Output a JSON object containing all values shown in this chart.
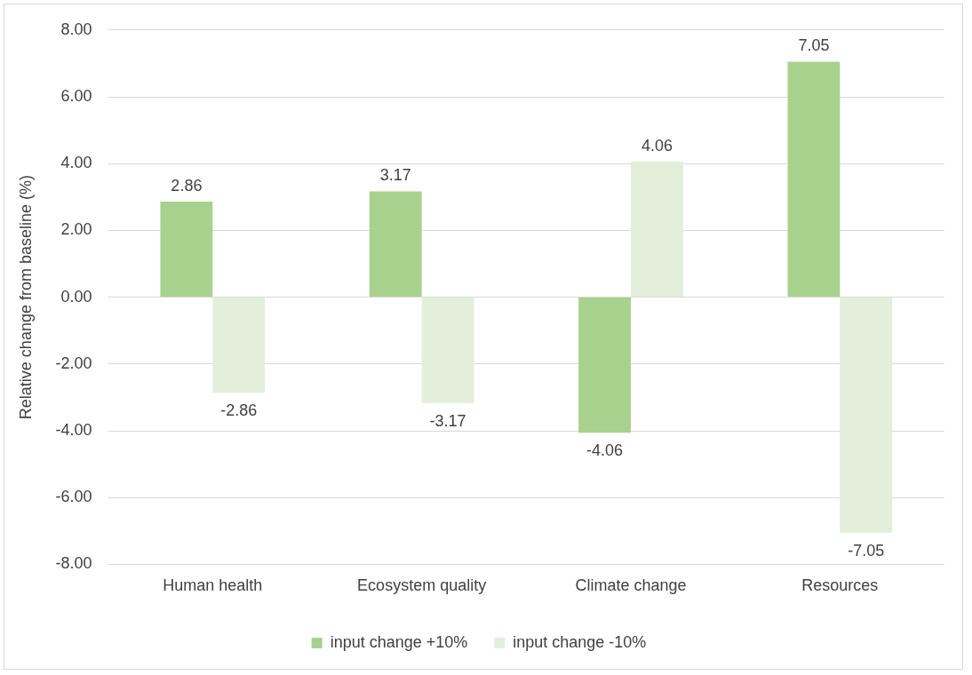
{
  "chart_data": {
    "type": "bar",
    "ylabel": "Relative change from baseline (%)",
    "categories": [
      "Human health",
      "Ecosystem quality",
      "Climate change",
      "Resources"
    ],
    "series": [
      {
        "name": "input change +10%",
        "color": "#a9d18e",
        "values": [
          2.86,
          3.17,
          -4.06,
          7.05
        ]
      },
      {
        "name": "input change -10%",
        "color": "#e2efda",
        "values": [
          -2.86,
          -3.17,
          4.06,
          -7.05
        ]
      }
    ],
    "ylim": [
      -8,
      8
    ],
    "yticks": [
      {
        "value": -8,
        "label": "-8.00"
      },
      {
        "value": -6,
        "label": "-6.00"
      },
      {
        "value": -4,
        "label": "-4.00"
      },
      {
        "value": -2,
        "label": "-2.00"
      },
      {
        "value": 0,
        "label": "0.00"
      },
      {
        "value": 2,
        "label": "2.00"
      },
      {
        "value": 4,
        "label": "4.00"
      },
      {
        "value": 6,
        "label": "6.00"
      },
      {
        "value": 8,
        "label": "8.00"
      }
    ],
    "grid": "y",
    "legend": "bottom",
    "data_labels": true
  }
}
